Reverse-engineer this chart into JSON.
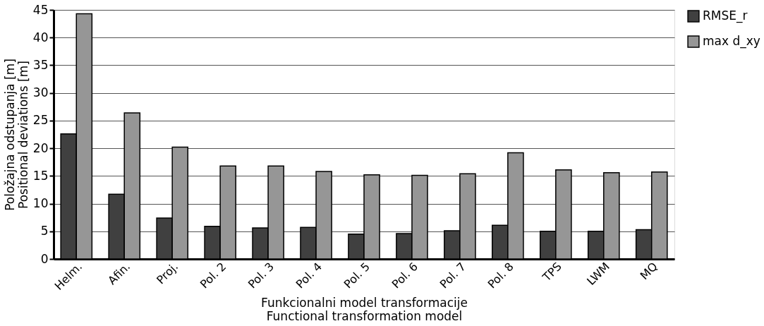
{
  "chart_data": {
    "type": "bar",
    "categories": [
      "Helm.",
      "Afin.",
      "Proj.",
      "Pol. 2",
      "Pol. 3",
      "Pol. 4",
      "Pol. 5",
      "Pol. 6",
      "Pol. 7",
      "Pol. 8",
      "TPS",
      "LWM",
      "MQ"
    ],
    "series": [
      {
        "name": "RMSE_r",
        "color": "#404040",
        "values": [
          22.6,
          11.7,
          7.4,
          5.9,
          5.6,
          5.7,
          4.5,
          4.6,
          5.1,
          6.1,
          5.0,
          5.0,
          5.3
        ]
      },
      {
        "name": "max d_xy",
        "color": "#969696",
        "values": [
          44.3,
          26.4,
          20.2,
          16.8,
          16.8,
          15.8,
          15.2,
          15.1,
          15.4,
          19.2,
          16.1,
          15.6,
          15.7
        ]
      }
    ],
    "xlabel": [
      "Funkcionalni model transformacije",
      "Functional transformation model"
    ],
    "ylabel": [
      "Položajna odstupanja [m]",
      "Positional deviations [m]"
    ],
    "ylim": [
      0,
      45
    ],
    "yticks": [
      0,
      5,
      10,
      15,
      20,
      25,
      30,
      35,
      40,
      45
    ],
    "grid": "y",
    "legend": "right"
  }
}
